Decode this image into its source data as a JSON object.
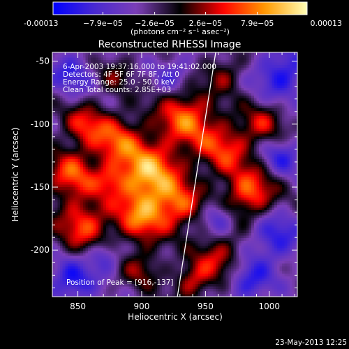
{
  "chart_data": {
    "type": "heatmap",
    "title": "Reconstructed RHESSI Image",
    "xlabel": "Heliocentric X (arcsec)",
    "ylabel": "Heliocentric Y (arcsec)",
    "xlim": [
      830,
      1022
    ],
    "ylim": [
      -237,
      -43
    ],
    "x_ticks": [
      850,
      900,
      950,
      1000
    ],
    "y_ticks": [
      -50,
      -100,
      -150,
      -200
    ],
    "colorbar": {
      "range": [
        -0.00013,
        0.00013
      ],
      "tick_values": [
        -0.00013,
        -7.9e-05,
        -2.6e-05,
        2.6e-05,
        7.9e-05,
        0.00013
      ],
      "tick_labels": [
        "-0.00013",
        "−7.9e−05",
        "−2.6e−05",
        "2.6e−05",
        "7.9e−05",
        "0.00013"
      ],
      "unit_label": "(photons cm⁻² s⁻¹ asec⁻²)",
      "colors": [
        "#0000ff",
        "#4a2ad0",
        "#7c3fb6",
        "#000000",
        "#ff0000",
        "#ff9a00",
        "#ffffb8"
      ]
    },
    "annotations": [
      "6-Apr-2003 19:37:16.000 to 19:41:02.000",
      "Detectors: 4F 5F 6F 7F 8F, Att 0",
      "Energy Range: 25.0 - 50.0 keV",
      "Clean     Total counts: 2.85E+03"
    ],
    "peak_label": "Position of Peak = [916,-137]",
    "limb_line": [
      [
        928,
        -237
      ],
      [
        958,
        -43
      ]
    ],
    "blobs": [
      {
        "x": 905,
        "y": -140,
        "w": 0.00013,
        "s": 18
      },
      {
        "x": 935,
        "y": -95,
        "w": 0.0001,
        "s": 16
      },
      {
        "x": 880,
        "y": -112,
        "w": 8e-05,
        "s": 14
      },
      {
        "x": 855,
        "y": -100,
        "w": 7e-05,
        "s": 12
      },
      {
        "x": 845,
        "y": -140,
        "w": 9e-05,
        "s": 14
      },
      {
        "x": 855,
        "y": -180,
        "w": 9e-05,
        "s": 15
      },
      {
        "x": 900,
        "y": -175,
        "w": 9e-05,
        "s": 14
      },
      {
        "x": 930,
        "y": -165,
        "w": 8e-05,
        "s": 13
      },
      {
        "x": 965,
        "y": -120,
        "w": 8e-05,
        "s": 15
      },
      {
        "x": 985,
        "y": -155,
        "w": 0.0001,
        "s": 14
      },
      {
        "x": 995,
        "y": -100,
        "w": 6e-05,
        "s": 12
      },
      {
        "x": 960,
        "y": -205,
        "w": 7e-05,
        "s": 13
      },
      {
        "x": 940,
        "y": -225,
        "w": 7e-05,
        "s": 10
      },
      {
        "x": 900,
        "y": -215,
        "w": 5e-05,
        "s": 11
      },
      {
        "x": 965,
        "y": -60,
        "w": 5e-05,
        "s": 10
      },
      {
        "x": 880,
        "y": -60,
        "w": 4e-05,
        "s": 10
      },
      {
        "x": 1005,
        "y": -190,
        "w": -7e-05,
        "s": 14
      },
      {
        "x": 1010,
        "y": -60,
        "w": -8e-05,
        "s": 14
      },
      {
        "x": 845,
        "y": -60,
        "w": -6e-05,
        "s": 12
      },
      {
        "x": 845,
        "y": -225,
        "w": -8e-05,
        "s": 12
      },
      {
        "x": 985,
        "y": -225,
        "w": -7e-05,
        "s": 12
      },
      {
        "x": 925,
        "y": -60,
        "w": -5e-05,
        "s": 10
      },
      {
        "x": 960,
        "y": -175,
        "w": -6e-05,
        "s": 9
      },
      {
        "x": 870,
        "y": -205,
        "w": -6e-05,
        "s": 9
      },
      {
        "x": 1010,
        "y": -125,
        "w": -6e-05,
        "s": 11
      },
      {
        "x": 875,
        "y": -145,
        "w": 5e-05,
        "s": 9
      }
    ]
  },
  "footer": {
    "date": "23-May-2013 12:25"
  }
}
